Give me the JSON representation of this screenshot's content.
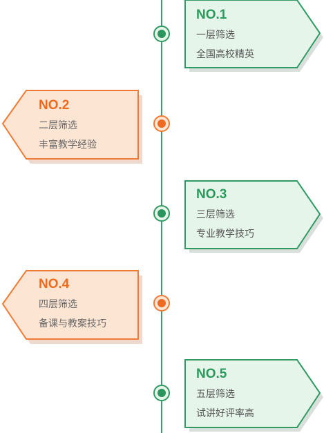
{
  "items": [
    {
      "number": "NO.1",
      "level": "一层筛选",
      "detail": "全国高校精英",
      "side": "right",
      "color": "green"
    },
    {
      "number": "NO.2",
      "level": "二层筛选",
      "detail": "丰富教学经验",
      "side": "left",
      "color": "orange"
    },
    {
      "number": "NO.3",
      "level": "三层筛选",
      "detail": "专业教学技巧",
      "side": "right",
      "color": "green"
    },
    {
      "number": "NO.4",
      "level": "四层筛选",
      "detail": "备课与教案技巧",
      "side": "left",
      "color": "orange"
    },
    {
      "number": "NO.5",
      "level": "五层筛选",
      "detail": "试讲好评率高",
      "side": "right",
      "color": "green"
    }
  ],
  "colors": {
    "green_border": "#2f9a63",
    "green_fill": "#e6f5ea",
    "orange_border": "#ef7a33",
    "orange_fill": "#fde5d4"
  }
}
